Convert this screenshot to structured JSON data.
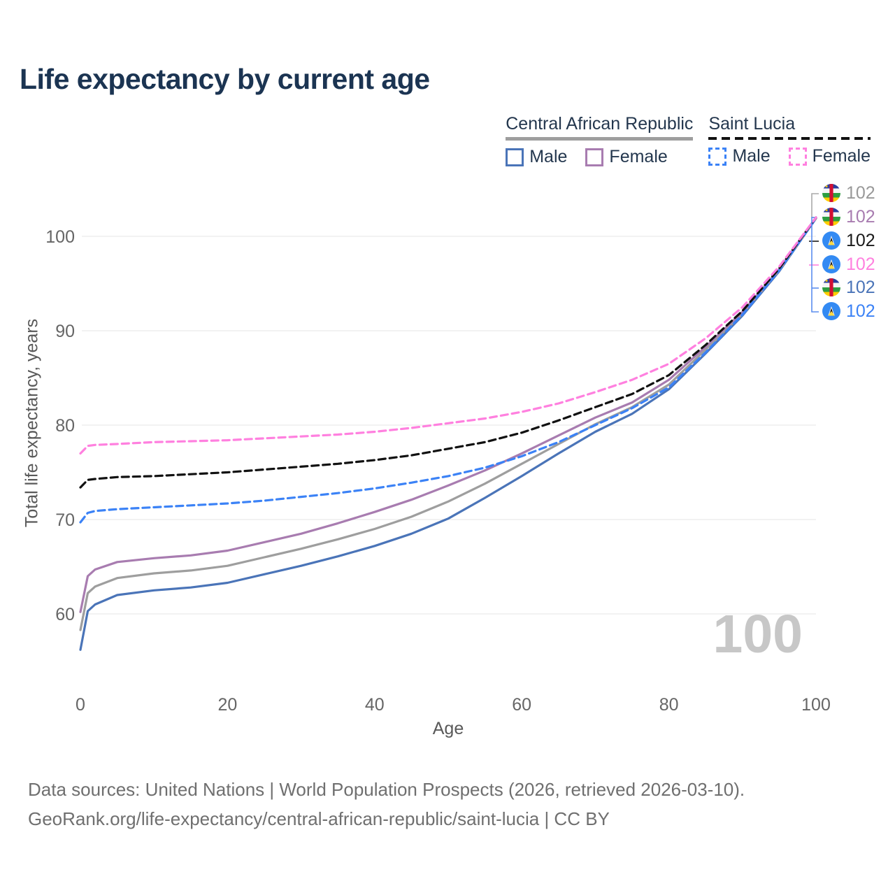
{
  "title": "Life expectancy by current age",
  "legend": {
    "groups": [
      {
        "label": "Central African Republic",
        "line": {
          "color": "#9e9e9e",
          "dashed": false
        },
        "items": [
          {
            "label": "Male",
            "color": "#4a74b8",
            "dashed": false
          },
          {
            "label": "Female",
            "color": "#a87cb0",
            "dashed": false
          }
        ]
      },
      {
        "label": "Saint Lucia",
        "line": {
          "color": "#111111",
          "dashed": true
        },
        "items": [
          {
            "label": "Male",
            "color": "#3b82f6",
            "dashed": true
          },
          {
            "label": "Female",
            "color": "#ff80df",
            "dashed": true
          }
        ]
      }
    ]
  },
  "chart_data": {
    "type": "line",
    "title": "Life expectancy by current age",
    "xlabel": "Age",
    "ylabel": "Total life expectancy, years",
    "x_ticks": [
      0,
      20,
      40,
      60,
      80,
      100
    ],
    "y_ticks": [
      60,
      70,
      80,
      90,
      100
    ],
    "xlim": [
      0,
      100
    ],
    "ylim": [
      56,
      103
    ],
    "grid": "horizontal",
    "legend_position": "top-right",
    "watermark": "100",
    "x": [
      0,
      1,
      2,
      5,
      10,
      15,
      20,
      25,
      30,
      35,
      40,
      45,
      50,
      55,
      60,
      65,
      70,
      75,
      80,
      85,
      90,
      95,
      100
    ],
    "series": [
      {
        "name": "Central African Republic Male",
        "color": "#4a74b8",
        "dashed": false,
        "values": [
          56.2,
          60.3,
          61.0,
          62.0,
          62.5,
          62.8,
          63.3,
          64.2,
          65.1,
          66.1,
          67.2,
          68.5,
          70.1,
          72.3,
          74.6,
          77.0,
          79.3,
          81.2,
          83.8,
          87.6,
          91.6,
          96.3,
          101.9
        ]
      },
      {
        "name": "Central African Republic Total",
        "color": "#9e9e9e",
        "dashed": false,
        "values": [
          58.3,
          62.2,
          62.9,
          63.8,
          64.3,
          64.6,
          65.1,
          66.0,
          66.9,
          67.9,
          69.0,
          70.3,
          71.9,
          73.8,
          75.9,
          78.0,
          80.1,
          81.9,
          84.3,
          88.0,
          91.8,
          96.4,
          101.9
        ]
      },
      {
        "name": "Central African Republic Female",
        "color": "#a87cb0",
        "dashed": false,
        "values": [
          60.2,
          64.0,
          64.7,
          65.5,
          65.9,
          66.2,
          66.7,
          67.6,
          68.5,
          69.6,
          70.8,
          72.1,
          73.6,
          75.2,
          77.0,
          78.9,
          80.8,
          82.4,
          84.8,
          88.3,
          92.0,
          96.5,
          102.0
        ]
      },
      {
        "name": "Saint Lucia Male",
        "color": "#3b82f6",
        "dashed": true,
        "values": [
          69.7,
          70.7,
          70.9,
          71.1,
          71.3,
          71.5,
          71.7,
          72.0,
          72.4,
          72.8,
          73.3,
          73.9,
          74.6,
          75.5,
          76.7,
          78.2,
          80.0,
          81.8,
          84.0,
          87.7,
          91.7,
          96.4,
          101.9
        ]
      },
      {
        "name": "Saint Lucia Total",
        "color": "#111111",
        "dashed": true,
        "values": [
          73.4,
          74.2,
          74.3,
          74.5,
          74.6,
          74.8,
          75.0,
          75.3,
          75.6,
          75.9,
          76.3,
          76.8,
          77.5,
          78.2,
          79.2,
          80.5,
          81.9,
          83.3,
          85.3,
          88.5,
          92.1,
          96.6,
          102.0
        ]
      },
      {
        "name": "Saint Lucia Female",
        "color": "#ff80df",
        "dashed": true,
        "values": [
          77.0,
          77.8,
          77.9,
          78.0,
          78.2,
          78.3,
          78.4,
          78.6,
          78.8,
          79.0,
          79.3,
          79.7,
          80.2,
          80.7,
          81.4,
          82.3,
          83.5,
          84.8,
          86.5,
          89.2,
          92.5,
          96.8,
          102.0
        ]
      }
    ]
  },
  "end_labels": [
    {
      "flag": "central-african-republic",
      "value": "102",
      "color": "#999999"
    },
    {
      "flag": "central-african-republic",
      "value": "102",
      "color": "#a87cb0"
    },
    {
      "flag": "saint-lucia",
      "value": "102",
      "color": "#1a1a1a"
    },
    {
      "flag": "saint-lucia",
      "value": "102",
      "color": "#ff80df"
    },
    {
      "flag": "central-african-republic",
      "value": "102",
      "color": "#4a74b8"
    },
    {
      "flag": "saint-lucia",
      "value": "102",
      "color": "#3b82f6"
    }
  ],
  "footer": {
    "line1": "Data sources: United Nations | World Population Prospects (2026, retrieved 2026-03-10).",
    "line2": "GeoRank.org/life-expectancy/central-african-republic/saint-lucia | CC BY"
  }
}
